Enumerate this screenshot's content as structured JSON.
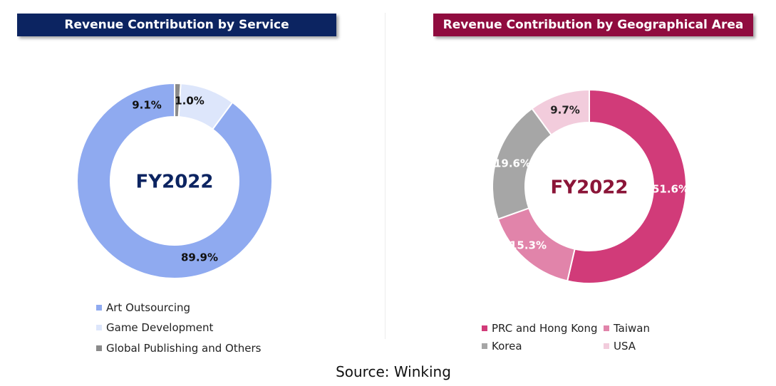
{
  "left_panel": {
    "banner_title": "Revenue Contribution by Service",
    "banner_color": "#0c2461"
  },
  "right_panel": {
    "banner_title": "Revenue Contribution by Geographical Area",
    "banner_color": "#900c3f"
  },
  "source": "Source: Winking",
  "chart_data": [
    {
      "type": "pie",
      "donut": true,
      "center_label": "FY2022",
      "center_label_color": "#0c2461",
      "categories": [
        "Art Outsourcing",
        "Game Development",
        "Global Publishing and Others"
      ],
      "values": [
        89.9,
        9.1,
        1.0
      ],
      "data_labels": [
        "89.9%",
        "9.1%",
        "1.0%"
      ],
      "colors": [
        "#8faaf0",
        "#dde6fb",
        "#8a8a8a"
      ],
      "label_color": "#111111",
      "legend_position": "bottom-left"
    },
    {
      "type": "pie",
      "donut": true,
      "center_label": "FY2022",
      "center_label_color": "#8b1538",
      "categories": [
        "PRC and Hong Kong",
        "Taiwan",
        "Korea",
        "USA"
      ],
      "values": [
        51.6,
        15.3,
        19.6,
        9.7
      ],
      "data_labels": [
        "51.6%",
        "15.3%",
        "19.6%",
        "9.7%"
      ],
      "colors": [
        "#d13b79",
        "#e184aa",
        "#a6a6a6",
        "#f2ccdc"
      ],
      "label_colors": [
        "#ffffff",
        "#ffffff",
        "#ffffff",
        "#222222"
      ],
      "legend_position": "bottom"
    }
  ]
}
